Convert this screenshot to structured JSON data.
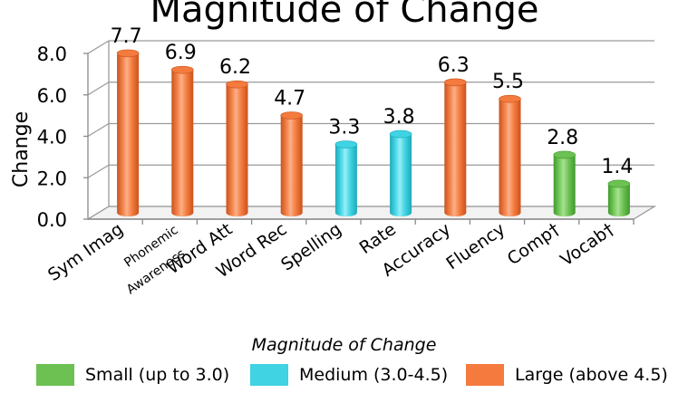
{
  "chart_data": {
    "type": "bar",
    "title": "Magnitude of Change",
    "ylabel": "Change",
    "ylim": [
      0,
      8
    ],
    "yticks": [
      "0.0",
      "2.0",
      "4.0",
      "6.0",
      "8.0"
    ],
    "categories": [
      [
        "Sym Imag"
      ],
      [
        "Phonemic",
        "Awareness"
      ],
      [
        "Word Att"
      ],
      [
        "Word Rec"
      ],
      [
        "Spelling"
      ],
      [
        "Rate"
      ],
      [
        "Accuracy"
      ],
      [
        "Fluency"
      ],
      [
        "Comp†"
      ],
      [
        "Vocab†"
      ]
    ],
    "values": [
      7.7,
      6.9,
      6.2,
      4.7,
      3.3,
      3.8,
      6.3,
      5.5,
      2.8,
      1.4
    ],
    "value_labels": [
      "7.7",
      "6.9",
      "6.2",
      "4.7",
      "3.3",
      "3.8",
      "6.3",
      "5.5",
      "2.8",
      "1.4"
    ],
    "magnitude": [
      "large",
      "large",
      "large",
      "large",
      "medium",
      "medium",
      "large",
      "large",
      "small",
      "small"
    ],
    "grid": true
  },
  "legend": {
    "title": "Magnitude of Change",
    "items": [
      {
        "key": "small",
        "label": "Small (up to 3.0)",
        "color": "#6cc152"
      },
      {
        "key": "medium",
        "label": "Medium (3.0-4.5)",
        "color": "#3fd3e3"
      },
      {
        "key": "large",
        "label": "Large (above 4.5)",
        "color": "#f47a3d"
      }
    ]
  },
  "colors": {
    "large": "#f47a3d",
    "medium": "#3fd3e3",
    "small": "#6cc152"
  }
}
